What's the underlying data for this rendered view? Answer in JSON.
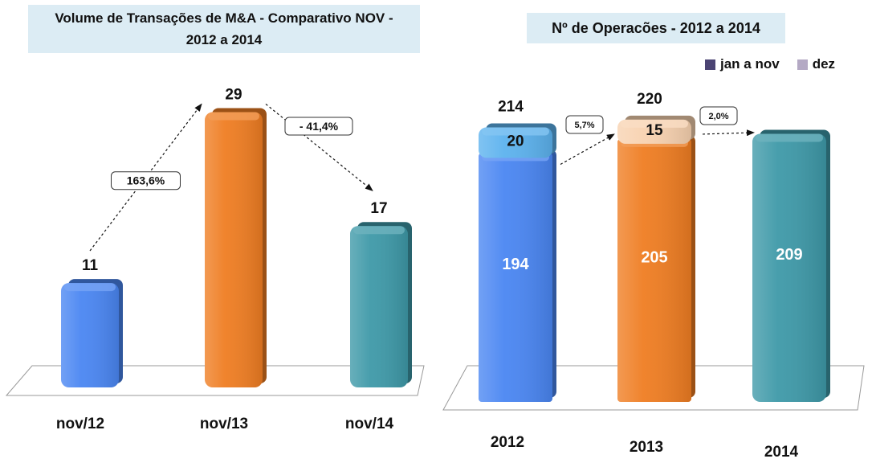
{
  "colors": {
    "blue": "#4a86f2",
    "orange": "#ef7d22",
    "teal": "#3e99a8",
    "light_blue": "#5cb2ee",
    "peach": "#f8d2b0",
    "legend_jan_nov": "#4b4473",
    "legend_dez": "#b4a9c4"
  },
  "chart_data": [
    {
      "type": "bar",
      "title": "Volume de Transações de M&A - Comparativo NOV - 2012 a 2014",
      "title_lines": [
        "Volume de Transações de M&A - Comparativo NOV -",
        "2012 a 2014"
      ],
      "categories": [
        "nov/12",
        "nov/13",
        "nov/14"
      ],
      "values": [
        11,
        29,
        17
      ],
      "value_labels": [
        "11",
        "29",
        "17"
      ],
      "ylim": [
        0,
        32
      ],
      "xlabel": "",
      "ylabel": "",
      "annotations": [
        {
          "from": "nov/12",
          "to": "nov/13",
          "label": "163,6%"
        },
        {
          "from": "nov/13",
          "to": "nov/14",
          "label": "- 41,4%"
        }
      ]
    },
    {
      "type": "bar",
      "stacked": true,
      "title": "Nº de Operacões  - 2012 a 2014",
      "categories": [
        "2012",
        "2013",
        "2014"
      ],
      "series": [
        {
          "name": "jan a nov",
          "values": [
            194,
            205,
            209
          ]
        },
        {
          "name": "dez",
          "values": [
            20,
            15,
            0
          ]
        }
      ],
      "totals": [
        214,
        220,
        null
      ],
      "total_labels": [
        "214",
        "220",
        ""
      ],
      "legend": [
        "jan a nov",
        "dez"
      ],
      "legend_position": "top-right",
      "ylim": [
        0,
        240
      ],
      "annotations": [
        {
          "from": "2012",
          "to": "2013",
          "label": "5,7%"
        },
        {
          "from": "2013",
          "to": "2014",
          "label": "2,0%"
        }
      ]
    }
  ]
}
